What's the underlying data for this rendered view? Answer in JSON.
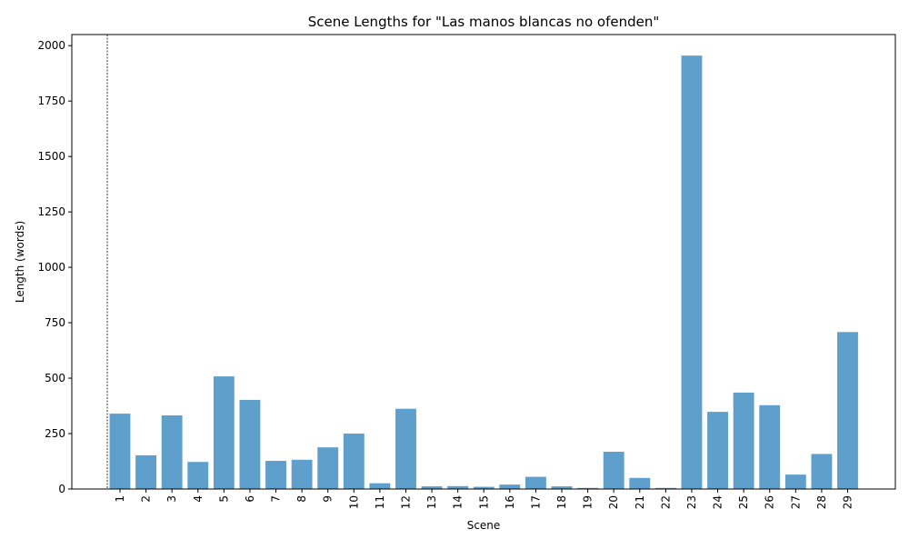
{
  "chart_data": {
    "type": "bar",
    "title": "Scene Lengths for \"Las manos blancas no ofenden\"",
    "xlabel": "Scene",
    "ylabel": "Length (words)",
    "categories": [
      "1",
      "2",
      "3",
      "4",
      "5",
      "6",
      "7",
      "8",
      "9",
      "10",
      "11",
      "12",
      "13",
      "14",
      "15",
      "16",
      "17",
      "18",
      "19",
      "20",
      "21",
      "22",
      "23",
      "24",
      "25",
      "26",
      "27",
      "28",
      "29"
    ],
    "values": [
      340,
      152,
      332,
      122,
      508,
      402,
      127,
      132,
      188,
      250,
      26,
      362,
      12,
      13,
      10,
      20,
      55,
      12,
      5,
      168,
      50,
      5,
      1955,
      348,
      435,
      378,
      65,
      158,
      708
    ],
    "ylim": [
      0,
      2050
    ],
    "yticks": [
      0,
      250,
      500,
      750,
      1000,
      1250,
      1500,
      1750,
      2000
    ],
    "bar_color": "#5f9fcc",
    "reference_line_color": "#000000",
    "grid": false,
    "legend": "none"
  }
}
